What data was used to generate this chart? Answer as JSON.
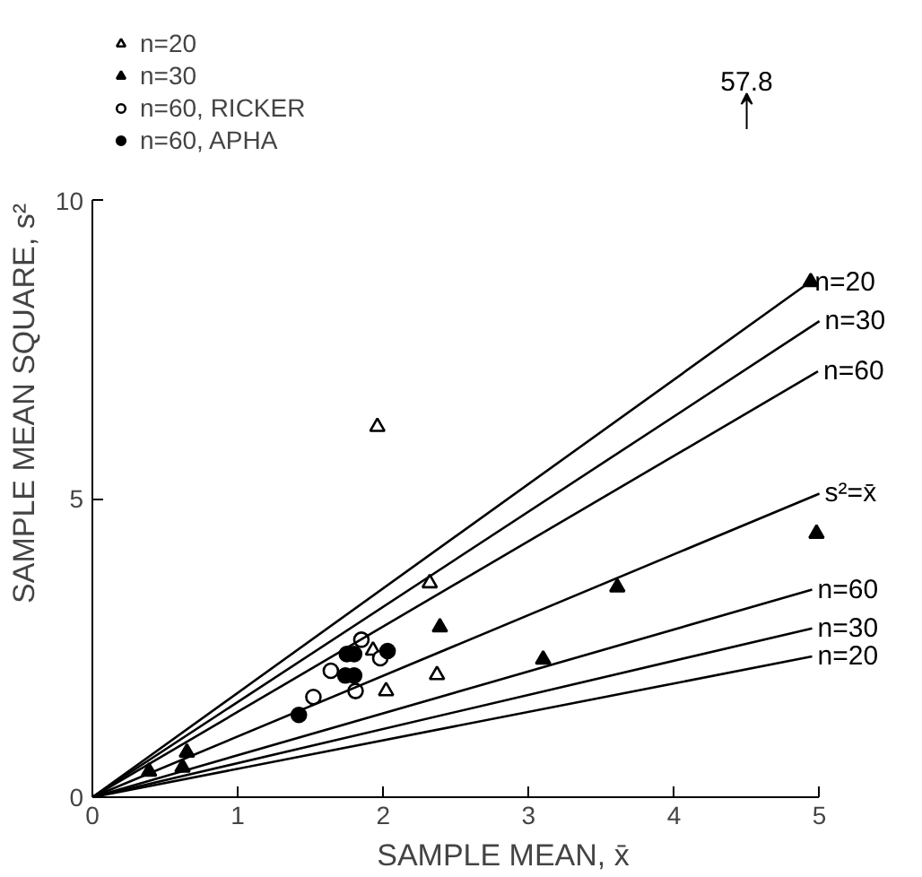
{
  "chart_data": {
    "type": "scatter",
    "xlabel": "SAMPLE MEAN, x̄",
    "ylabel": "SAMPLE MEAN SQUARE, s²",
    "xlim": [
      0,
      5
    ],
    "ylim": [
      0,
      10
    ],
    "xticks": [
      0,
      1,
      2,
      3,
      4,
      5
    ],
    "yticks": [
      0,
      5,
      10
    ],
    "grid": false,
    "legend": "top left",
    "series": [
      {
        "name": "n=20",
        "color": "#ffffff",
        "marker": "triangle",
        "x": [
          1.96,
          2.32,
          1.93,
          2.02,
          2.37
        ],
        "values": [
          6.21,
          3.59,
          2.46,
          1.78,
          2.05
        ]
      },
      {
        "name": "n=30",
        "color": "#000000",
        "marker": "triangle",
        "x": [
          0.39,
          0.65,
          0.62,
          2.39,
          3.61,
          3.1,
          4.98,
          4.94
        ],
        "values": [
          0.43,
          0.75,
          0.5,
          2.85,
          3.52,
          2.31,
          4.42,
          8.64
        ]
      },
      {
        "name": "n=60, RICKER",
        "color": "#ffffff",
        "marker": "circle",
        "x": [
          1.85,
          1.64,
          1.52,
          1.81,
          1.98
        ],
        "values": [
          2.64,
          2.12,
          1.68,
          1.78,
          2.33
        ]
      },
      {
        "name": "n=60, APHA",
        "color": "#000000",
        "marker": "circle",
        "x": [
          1.42,
          1.75,
          1.8,
          1.74,
          1.8,
          2.03
        ],
        "values": [
          1.38,
          2.4,
          2.4,
          2.04,
          2.04,
          2.45
        ]
      },
      {
        "type": "line",
        "name": "n=20",
        "color": "#000000",
        "x": [
          0,
          4.93
        ],
        "values": [
          0,
          8.63
        ]
      },
      {
        "type": "line",
        "name": "n=30",
        "color": "#000000",
        "x": [
          0,
          5
        ],
        "values": [
          0,
          7.98
        ]
      },
      {
        "type": "line",
        "name": "n=60",
        "color": "#000000",
        "x": [
          0,
          4.99
        ],
        "values": [
          0,
          7.14
        ]
      },
      {
        "type": "line",
        "name": "s²=x̄",
        "color": "#000000",
        "x": [
          0,
          5
        ],
        "values": [
          0,
          5.09
        ]
      },
      {
        "type": "line",
        "name": "n=60",
        "color": "#000000",
        "x": [
          0,
          4.95
        ],
        "values": [
          0,
          3.48
        ]
      },
      {
        "type": "line",
        "name": "n=30",
        "color": "#000000",
        "x": [
          0,
          4.95
        ],
        "values": [
          0,
          2.83
        ]
      },
      {
        "type": "line",
        "name": "n=20",
        "color": "#000000",
        "x": [
          0,
          4.95
        ],
        "values": [
          0,
          2.36
        ]
      }
    ],
    "annotations": [
      "57.8"
    ]
  }
}
